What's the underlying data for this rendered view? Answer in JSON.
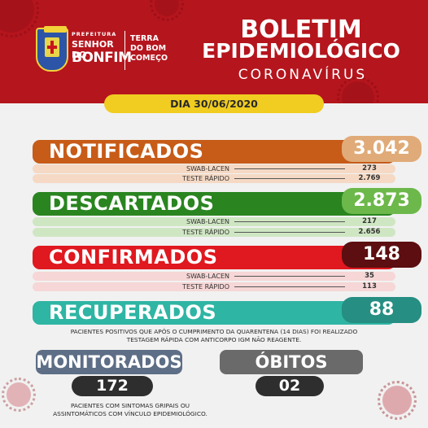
{
  "header": {
    "prefeitura": "PREFEITURA",
    "city_line1": "SENHOR DO",
    "city_line2": "BONFIM",
    "slogan": [
      "TERRA",
      "DO BOM",
      "COMEÇO"
    ],
    "title_line1": "BOLETIM",
    "title_line2": "EPIDEMIOLÓGICO",
    "title_line3": "CORONAVÍRUS"
  },
  "date": "DIA 30/06/2020",
  "notificados": {
    "label": "NOTIFICADOS",
    "value": "3.042",
    "color": "#c75b18",
    "value_bg": "#e0ab78",
    "rows": [
      {
        "label": "SWAB-LACEN",
        "value": "273"
      },
      {
        "label": "TESTE RÁPIDO",
        "value": "2.769"
      }
    ]
  },
  "descartados": {
    "label": "DESCARTADOS",
    "value": "2.873",
    "color": "#2a8520",
    "value_bg": "#6cb84a",
    "rows": [
      {
        "label": "SWAB-LACEN",
        "value": "217"
      },
      {
        "label": "TESTE RÁPIDO",
        "value": "2.656"
      }
    ]
  },
  "confirmados": {
    "label": "CONFIRMADOS",
    "value": "148",
    "color": "#e0181f",
    "value_bg": "#5c0e10",
    "rows": [
      {
        "label": "SWAB-LACEN",
        "value": "35"
      },
      {
        "label": "TESTE RÁPIDO",
        "value": "113"
      }
    ]
  },
  "recuperados": {
    "label": "RECUPERADOS",
    "value": "88",
    "color": "#2fb5a4",
    "value_bg": "#268e82",
    "note_line1": "PACIENTES POSITIVOS QUE APÓS O CUMPRIMENTO DA QUARENTENA (14 DIAS) FOI REALIZADO",
    "note_line2": "TESTAGEM RÁPIDA COM ANTICORPO IGM NÃO REAGENTE."
  },
  "monitorados": {
    "label": "MONITORADOS",
    "value": "172",
    "color": "#5d6e86",
    "note_line1": "PACIENTES COM SINTOMAS GRIPAIS OU",
    "note_line2": "ASSINTOMÁTICOS COM VÍNCULO EPIDEMIOLÓGICO."
  },
  "obitos": {
    "label": "ÓBITOS",
    "value": "02",
    "color": "#6a6a6a"
  }
}
